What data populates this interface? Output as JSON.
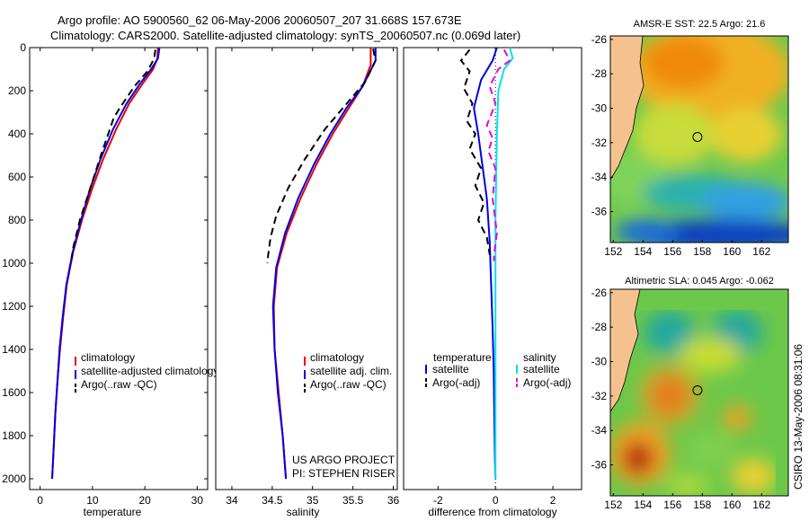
{
  "title": {
    "line1": "Argo profile: AO 5900560_62 06-May-2006 20060507_207 31.668S 157.673E",
    "line2": "Climatology: CARS2000. Satellite-adjusted climatology: synTS_20060507.nc (0.069d later)"
  },
  "colors": {
    "climatology": "#e60000",
    "satellite": "#0000e6",
    "argo": "#000000",
    "salinity_satellite": "#00e5e5",
    "salinity_argo": "#e600e6",
    "land": "#f5c28f"
  },
  "chart_data": [
    {
      "type": "line",
      "name": "temperature-profile",
      "xlabel": "temperature",
      "ylabel": "",
      "xlim": [
        -2,
        32
      ],
      "ylim": [
        2050,
        0
      ],
      "xticks": [
        0,
        10,
        20,
        30
      ],
      "yticks": [
        0,
        200,
        400,
        600,
        800,
        1000,
        1200,
        1400,
        1600,
        1800,
        2000
      ],
      "legend": [
        "climatology",
        "satellite-adjusted climatology",
        "Argo(..raw -QC)"
      ],
      "series": [
        {
          "name": "climatology",
          "color": "#e60000",
          "dash": "",
          "points": [
            [
              22.5,
              0
            ],
            [
              22.4,
              50
            ],
            [
              21.6,
              100
            ],
            [
              19.5,
              170
            ],
            [
              17.0,
              260
            ],
            [
              14.5,
              380
            ],
            [
              12.0,
              520
            ],
            [
              10.0,
              650
            ],
            [
              8.0,
              800
            ],
            [
              6.3,
              950
            ],
            [
              5.1,
              1100
            ],
            [
              4.4,
              1250
            ],
            [
              3.8,
              1400
            ],
            [
              3.3,
              1550
            ],
            [
              2.9,
              1700
            ],
            [
              2.6,
              1850
            ],
            [
              2.3,
              2000
            ]
          ]
        },
        {
          "name": "satellite-adjusted climatology",
          "color": "#0000e6",
          "dash": "",
          "points": [
            [
              22.8,
              0
            ],
            [
              22.5,
              50
            ],
            [
              21.2,
              100
            ],
            [
              19.0,
              170
            ],
            [
              16.5,
              260
            ],
            [
              13.9,
              380
            ],
            [
              11.5,
              520
            ],
            [
              9.6,
              650
            ],
            [
              7.8,
              800
            ],
            [
              6.2,
              950
            ],
            [
              5.0,
              1100
            ],
            [
              4.3,
              1250
            ],
            [
              3.7,
              1400
            ],
            [
              3.3,
              1550
            ],
            [
              2.9,
              1700
            ],
            [
              2.6,
              1850
            ],
            [
              2.3,
              2000
            ]
          ]
        },
        {
          "name": "Argo(..raw -QC)",
          "color": "#000000",
          "dash": "8,5",
          "points": [
            [
              22.0,
              10
            ],
            [
              21.8,
              50
            ],
            [
              20.5,
              110
            ],
            [
              18.0,
              180
            ],
            [
              15.2,
              280
            ],
            [
              14.0,
              330
            ],
            [
              11.6,
              500
            ],
            [
              9.6,
              650
            ],
            [
              7.6,
              800
            ],
            [
              6.3,
              930
            ],
            [
              6.0,
              980
            ]
          ]
        }
      ]
    },
    {
      "type": "line",
      "name": "salinity-profile",
      "xlabel": "salinity",
      "ylabel": "",
      "xlim": [
        33.8,
        36.05
      ],
      "ylim": [
        2050,
        0
      ],
      "xticks": [
        34,
        34.5,
        35,
        35.5,
        36
      ],
      "yticks": [],
      "legend": [
        "climatology",
        "satellite adj. clim.",
        "Argo(..raw -QC)"
      ],
      "annotation": [
        "US ARGO PROJECT",
        "PI: STEPHEN RISER"
      ],
      "series": [
        {
          "name": "climatology",
          "color": "#e60000",
          "dash": "",
          "points": [
            [
              35.72,
              0
            ],
            [
              35.72,
              80
            ],
            [
              35.62,
              180
            ],
            [
              35.45,
              280
            ],
            [
              35.25,
              400
            ],
            [
              35.05,
              540
            ],
            [
              34.85,
              700
            ],
            [
              34.68,
              860
            ],
            [
              34.56,
              1020
            ],
            [
              34.52,
              1200
            ],
            [
              34.53,
              1400
            ],
            [
              34.58,
              1600
            ],
            [
              34.63,
              1800
            ],
            [
              34.67,
              2000
            ]
          ]
        },
        {
          "name": "satellite adj. clim.",
          "color": "#0000e6",
          "dash": "",
          "points": [
            [
              35.78,
              0
            ],
            [
              35.78,
              60
            ],
            [
              35.62,
              180
            ],
            [
              35.42,
              280
            ],
            [
              35.22,
              400
            ],
            [
              35.02,
              540
            ],
            [
              34.82,
              700
            ],
            [
              34.66,
              860
            ],
            [
              34.55,
              1020
            ],
            [
              34.51,
              1200
            ],
            [
              34.53,
              1400
            ],
            [
              34.57,
              1600
            ],
            [
              34.63,
              1800
            ],
            [
              34.67,
              2000
            ]
          ]
        },
        {
          "name": "Argo(..raw -QC)",
          "color": "#000000",
          "dash": "8,5",
          "points": [
            [
              35.75,
              5
            ],
            [
              35.78,
              60
            ],
            [
              35.65,
              160
            ],
            [
              35.4,
              270
            ],
            [
              35.15,
              380
            ],
            [
              34.9,
              520
            ],
            [
              34.7,
              650
            ],
            [
              34.55,
              780
            ],
            [
              34.48,
              880
            ],
            [
              34.45,
              960
            ],
            [
              34.44,
              1000
            ]
          ]
        }
      ]
    },
    {
      "type": "line",
      "name": "difference-profile",
      "xlabel": "difference from climatology",
      "ylabel": "",
      "xlim": [
        -3.2,
        3.0
      ],
      "ylim": [
        2050,
        0
      ],
      "xticks": [
        -2,
        0,
        2
      ],
      "yticks": [],
      "legend_temperature": {
        "heading": "temperature",
        "items": [
          "satellite",
          "Argo(-adj)"
        ]
      },
      "legend_salinity": {
        "heading": "salinity",
        "items": [
          "satellite",
          "Argo(-adj)"
        ]
      },
      "series": [
        {
          "name": "temperature satellite",
          "color": "#0000e6",
          "dash": "",
          "points": [
            [
              0.05,
              0
            ],
            [
              -0.1,
              60
            ],
            [
              -0.5,
              150
            ],
            [
              -0.75,
              280
            ],
            [
              -0.6,
              400
            ],
            [
              -0.45,
              550
            ],
            [
              -0.3,
              700
            ],
            [
              -0.2,
              900
            ],
            [
              -0.15,
              1100
            ],
            [
              -0.1,
              1300
            ],
            [
              -0.06,
              1500
            ],
            [
              -0.04,
              1700
            ],
            [
              -0.02,
              1900
            ],
            [
              0.0,
              2000
            ]
          ]
        },
        {
          "name": "temperature Argo(-adj)",
          "color": "#000000",
          "dash": "8,5",
          "points": [
            [
              -0.9,
              10
            ],
            [
              -1.2,
              60
            ],
            [
              -0.9,
              110
            ],
            [
              -1.1,
              190
            ],
            [
              -0.8,
              260
            ],
            [
              -1.0,
              340
            ],
            [
              -0.7,
              400
            ],
            [
              -0.9,
              470
            ],
            [
              -0.5,
              560
            ],
            [
              -0.7,
              640
            ],
            [
              -0.4,
              720
            ],
            [
              -0.6,
              800
            ],
            [
              -0.3,
              880
            ],
            [
              -0.2,
              960
            ]
          ]
        },
        {
          "name": "salinity satellite",
          "color": "#00e5e5",
          "dash": "",
          "points": [
            [
              0.5,
              0
            ],
            [
              0.6,
              50
            ],
            [
              0.3,
              100
            ],
            [
              0.1,
              200
            ],
            [
              0.05,
              400
            ],
            [
              0.0,
              800
            ],
            [
              0.0,
              1200
            ],
            [
              0.0,
              1600
            ],
            [
              0.0,
              2000
            ]
          ]
        },
        {
          "name": "salinity Argo(-adj)",
          "color": "#e600e6",
          "dash": "8,5",
          "points": [
            [
              0.3,
              10
            ],
            [
              0.5,
              60
            ],
            [
              0.1,
              100
            ],
            [
              -0.2,
              180
            ],
            [
              0.0,
              260
            ],
            [
              -0.3,
              360
            ],
            [
              -0.1,
              420
            ],
            [
              -0.25,
              480
            ],
            [
              0.0,
              560
            ],
            [
              -0.1,
              700
            ],
            [
              0.05,
              860
            ],
            [
              -0.05,
              960
            ],
            [
              -0.05,
              990
            ]
          ]
        }
      ]
    },
    {
      "type": "heatmap",
      "name": "sst-map",
      "title": "AMSR-E SST: 22.5  Argo: 21.6",
      "xlim": [
        151.8,
        163.8
      ],
      "ylim": [
        -37.8,
        -25.8
      ],
      "xticks": [
        152,
        154,
        156,
        158,
        160,
        162
      ],
      "yticks": [
        -26,
        -28,
        -30,
        -32,
        -34,
        -36
      ],
      "profile_location": [
        157.673,
        -31.668
      ]
    },
    {
      "type": "heatmap",
      "name": "sla-map",
      "title": "Altimetric SLA: 0.045  Argo: -0.062",
      "xlim": [
        151.8,
        163.8
      ],
      "ylim": [
        -37.8,
        -25.8
      ],
      "xticks": [
        152,
        154,
        156,
        158,
        160,
        162
      ],
      "yticks": [
        -26,
        -28,
        -30,
        -32,
        -34,
        -36
      ],
      "profile_location": [
        157.673,
        -31.668
      ]
    }
  ],
  "footer": {
    "stamp": "CSIRO 13-May-2006 08:31:06"
  }
}
